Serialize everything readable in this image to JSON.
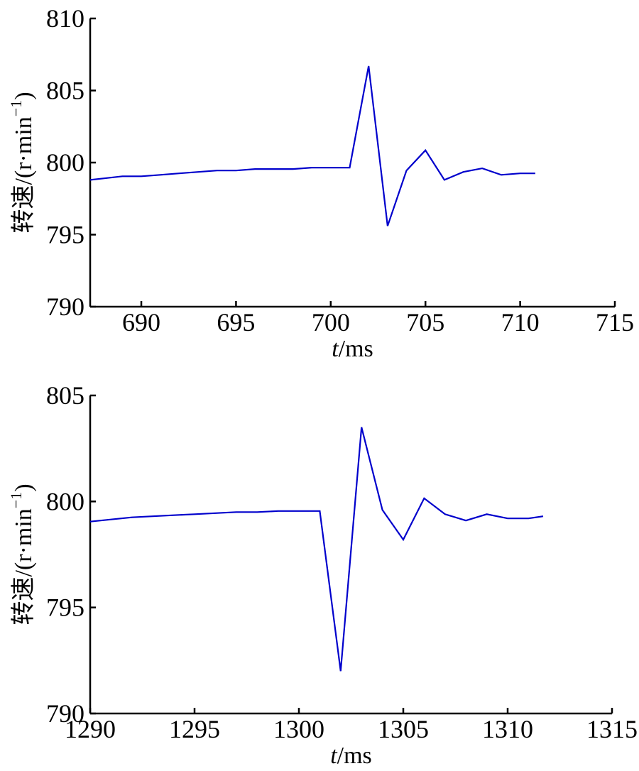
{
  "chart_data": [
    {
      "type": "line",
      "title": "",
      "xlabel_italic": "t",
      "xlabel_unit": "/ms",
      "ylabel_main": "转速/(r·min",
      "ylabel_sup": "−1",
      "ylabel_close": ")",
      "xlim": [
        687.3,
        715
      ],
      "ylim": [
        790,
        810
      ],
      "xticks": [
        690,
        695,
        700,
        705,
        710,
        715
      ],
      "yticks": [
        790,
        795,
        800,
        805,
        810
      ],
      "grid": false,
      "series": [
        {
          "color": "#0000cc",
          "x": [
            687.3,
            688,
            689,
            690,
            691,
            692,
            693,
            694,
            695,
            696,
            697,
            698,
            699,
            700,
            701,
            702,
            703,
            704,
            705,
            706,
            707,
            708,
            709,
            710,
            710.8
          ],
          "y": [
            798.8,
            798.9,
            799.05,
            799.05,
            799.15,
            799.25,
            799.35,
            799.45,
            799.45,
            799.55,
            799.55,
            799.55,
            799.65,
            799.65,
            799.65,
            806.7,
            795.6,
            799.45,
            800.85,
            798.8,
            799.35,
            799.6,
            799.15,
            799.25,
            799.25
          ]
        }
      ]
    },
    {
      "type": "line",
      "title": "",
      "xlabel_italic": "t",
      "xlabel_unit": "/ms",
      "ylabel_main": "转速/(r·min",
      "ylabel_sup": "−1",
      "ylabel_close": ")",
      "xlim": [
        1290,
        1315
      ],
      "ylim": [
        790,
        805
      ],
      "xticks": [
        1290,
        1295,
        1300,
        1305,
        1310,
        1315
      ],
      "yticks": [
        790,
        795,
        800,
        805
      ],
      "grid": false,
      "series": [
        {
          "color": "#0000cc",
          "x": [
            1290,
            1291,
            1292,
            1293,
            1294,
            1295,
            1296,
            1297,
            1298,
            1299,
            1300,
            1301,
            1302,
            1303,
            1304,
            1305,
            1306,
            1307,
            1308,
            1309,
            1310,
            1311,
            1311.7
          ],
          "y": [
            799.05,
            799.15,
            799.25,
            799.3,
            799.35,
            799.4,
            799.45,
            799.5,
            799.5,
            799.55,
            799.55,
            799.55,
            792.0,
            803.5,
            799.6,
            798.2,
            800.15,
            799.4,
            799.1,
            799.4,
            799.2,
            799.2,
            799.3
          ]
        }
      ]
    }
  ]
}
